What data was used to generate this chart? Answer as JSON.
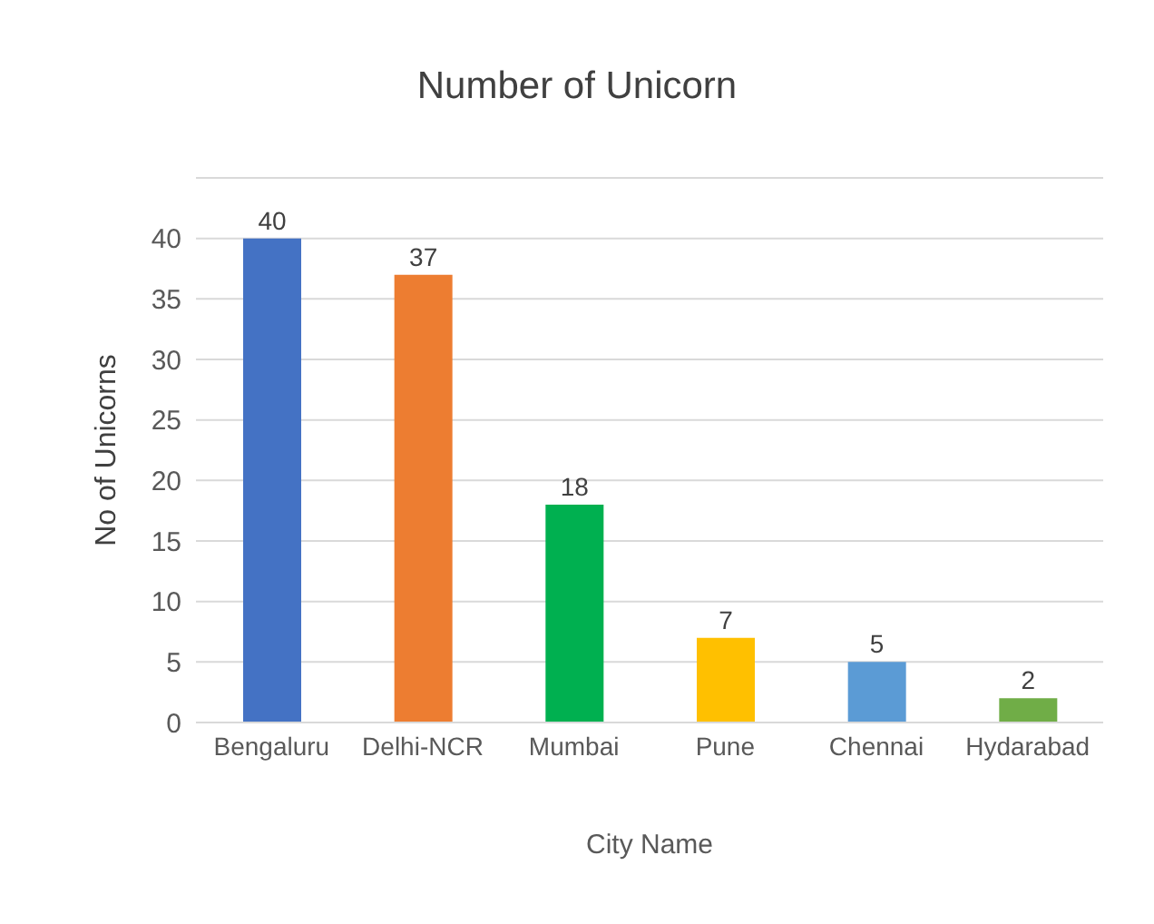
{
  "chart_data": {
    "type": "bar",
    "title": "Number of Unicorn",
    "xlabel": "City Name",
    "ylabel": "No of Unicorns",
    "categories": [
      "Bengaluru",
      "Delhi-NCR",
      "Mumbai",
      "Pune",
      "Chennai",
      "Hydarabad"
    ],
    "values": [
      40,
      37,
      18,
      7,
      5,
      2
    ],
    "colors": [
      "#4472c4",
      "#ed7d31",
      "#00b050",
      "#ffc000",
      "#5b9bd5",
      "#70ad47"
    ],
    "ylim": [
      0,
      45
    ],
    "yticks": [
      0,
      5,
      10,
      15,
      20,
      25,
      30,
      35,
      40,
      {
        "value": 45,
        "label": null
      }
    ],
    "grid": "y",
    "data_labels": true
  }
}
